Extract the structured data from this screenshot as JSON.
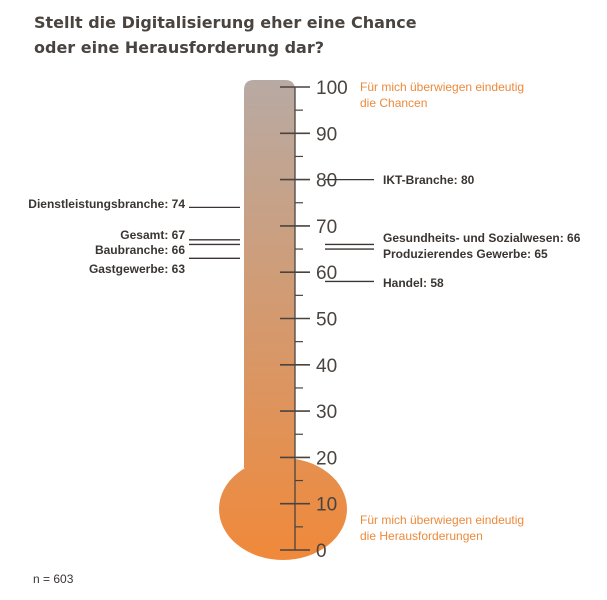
{
  "title": {
    "line1": "Stellt die Digitalisierung eher eine Chance",
    "line2": "oder eine Herausforderung dar?"
  },
  "footnote": "n = 603",
  "colors": {
    "thermo_top": "#b8aaa3",
    "thermo_bottom": "#f0893a",
    "tick": "#4a4440",
    "pointer": "#3a3532",
    "annotation": "#ec8a3c"
  },
  "chart_data": {
    "type": "thermometer",
    "ylim": [
      0,
      100
    ],
    "ticks": [
      0,
      10,
      20,
      30,
      40,
      50,
      60,
      70,
      80,
      90,
      100
    ],
    "annotations": {
      "top": [
        "Für mich überwiegen eindeutig",
        "die Chancen"
      ],
      "bottom": [
        "Für mich überwiegen eindeutig",
        "die Herausforderungen"
      ]
    },
    "left_series": [
      {
        "label": "Dienstleistungsbranche: 74",
        "value": 74
      },
      {
        "label": "Gesamt: 67",
        "value": 67
      },
      {
        "label": "Baubranche: 66",
        "value": 66
      },
      {
        "label": "Gastgewerbe: 63",
        "value": 63
      }
    ],
    "right_series": [
      {
        "label": "IKT-Branche: 80",
        "value": 80
      },
      {
        "label": "Gesundheits- und Sozialwesen: 66",
        "value": 66
      },
      {
        "label": "Produzierendes Gewerbe: 65",
        "value": 65
      },
      {
        "label": "Handel: 58",
        "value": 58
      }
    ]
  }
}
